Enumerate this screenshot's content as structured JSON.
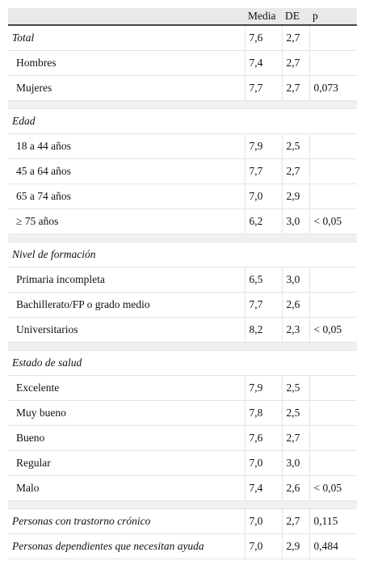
{
  "header": {
    "label": "",
    "media": "Media",
    "de": "DE",
    "p": "p"
  },
  "rows": [
    {
      "type": "data",
      "indent": false,
      "italic": true,
      "label": "Total",
      "media": "7,6",
      "de": "2,7",
      "p": ""
    },
    {
      "type": "data",
      "indent": true,
      "label": "Hombres",
      "media": "7,4",
      "de": "2,7",
      "p": ""
    },
    {
      "type": "data",
      "indent": true,
      "label": "Mujeres",
      "media": "7,7",
      "de": "2,7",
      "p": "0,073"
    },
    {
      "type": "spacer"
    },
    {
      "type": "category",
      "label": "Edad"
    },
    {
      "type": "data",
      "indent": true,
      "label": "18 a 44 años",
      "media": "7,9",
      "de": "2,5",
      "p": ""
    },
    {
      "type": "data",
      "indent": true,
      "label": "45 a 64 años",
      "media": "7,7",
      "de": "2,7",
      "p": ""
    },
    {
      "type": "data",
      "indent": true,
      "label": "65 a 74 años",
      "media": "7,0",
      "de": "2,9",
      "p": ""
    },
    {
      "type": "data",
      "indent": true,
      "label": "≥ 75 años",
      "media": "6,2",
      "de": "3,0",
      "p": "< 0,05"
    },
    {
      "type": "spacer"
    },
    {
      "type": "category",
      "label": "Nivel de formación"
    },
    {
      "type": "data",
      "indent": true,
      "label": "Primaria incompleta",
      "media": "6,5",
      "de": "3,0",
      "p": ""
    },
    {
      "type": "data",
      "indent": true,
      "label": "Bachillerato/FP o grado medio",
      "media": "7,7",
      "de": "2,6",
      "p": ""
    },
    {
      "type": "data",
      "indent": true,
      "label": "Universitarios",
      "media": "8,2",
      "de": "2,3",
      "p": "< 0,05"
    },
    {
      "type": "spacer"
    },
    {
      "type": "category",
      "label": "Estado de salud"
    },
    {
      "type": "data",
      "indent": true,
      "label": "Excelente",
      "media": "7,9",
      "de": "2,5",
      "p": ""
    },
    {
      "type": "data",
      "indent": true,
      "label": "Muy bueno",
      "media": "7,8",
      "de": "2,5",
      "p": ""
    },
    {
      "type": "data",
      "indent": true,
      "label": "Bueno",
      "media": "7,6",
      "de": "2,7",
      "p": ""
    },
    {
      "type": "data",
      "indent": true,
      "label": "Regular",
      "media": "7,0",
      "de": "3,0",
      "p": ""
    },
    {
      "type": "data",
      "indent": true,
      "label": "Malo",
      "media": "7,4",
      "de": "2,6",
      "p": "< 0,05"
    },
    {
      "type": "spacer"
    },
    {
      "type": "data",
      "indent": false,
      "italic": true,
      "label": "Personas con trastorno crónico",
      "media": "7,0",
      "de": "2,7",
      "p": "0,115"
    },
    {
      "type": "data",
      "indent": false,
      "italic": true,
      "label": "Personas dependientes que necesitan ayuda",
      "media": "7,0",
      "de": "2,9",
      "p": "0,484"
    }
  ]
}
